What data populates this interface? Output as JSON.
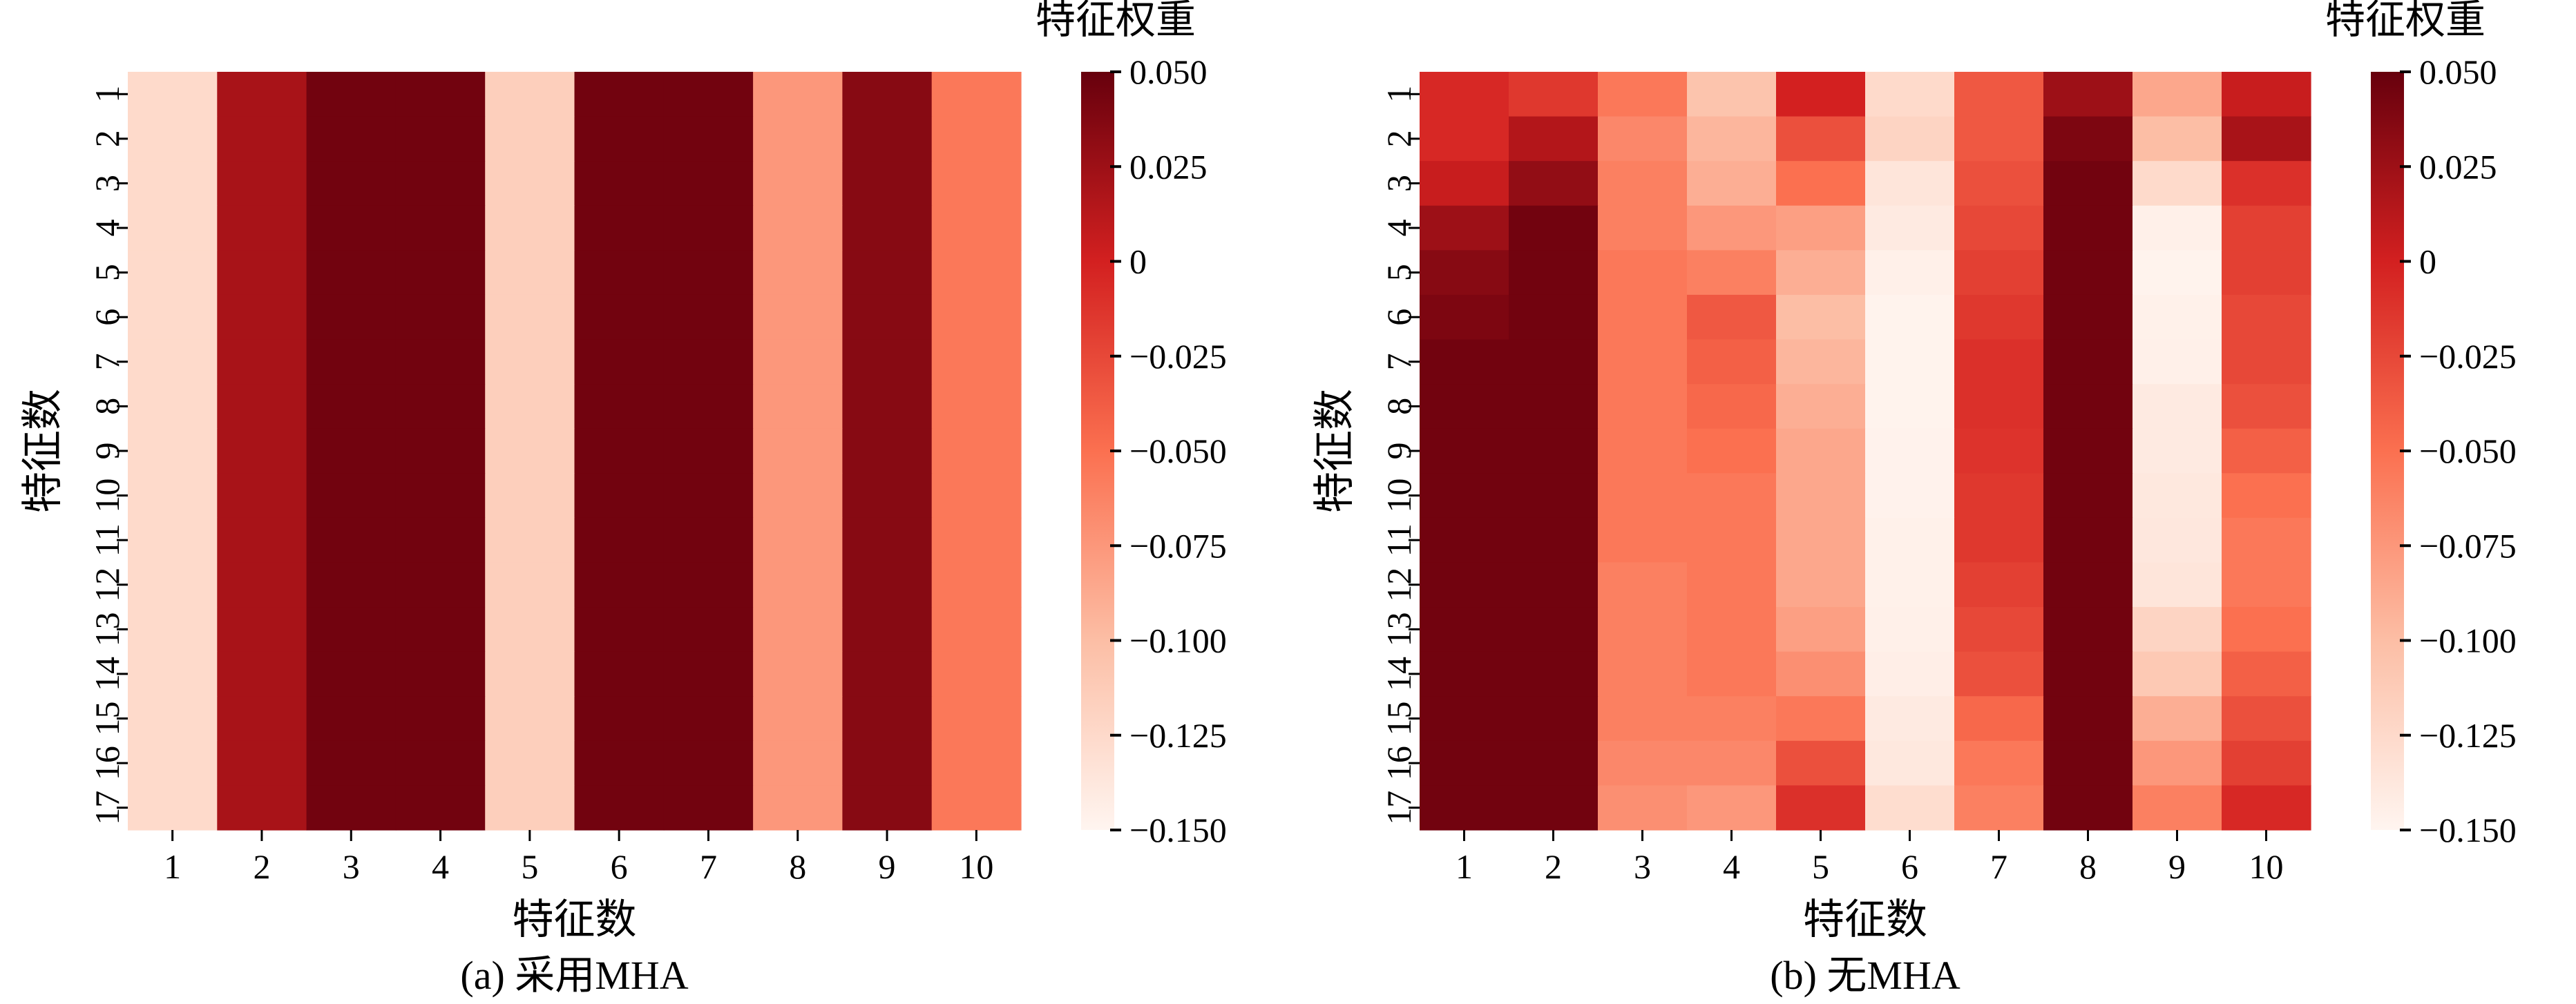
{
  "colors": {
    "colormap": [
      "#fff5f0",
      "#fcbea5",
      "#fb7050",
      "#d32020",
      "#67000d"
    ],
    "text": "#000000",
    "axis": "#000000"
  },
  "chart_data": [
    {
      "type": "heatmap",
      "panel": "a",
      "caption": "(a) 采用MHA",
      "xlabel": "特征数",
      "ylabel": "特征数",
      "x_ticks": [
        "1",
        "2",
        "3",
        "4",
        "5",
        "6",
        "7",
        "8",
        "9",
        "10"
      ],
      "y_ticks": [
        "1",
        "2",
        "3",
        "4",
        "5",
        "6",
        "7",
        "8",
        "9",
        "10",
        "11",
        "12",
        "13",
        "14",
        "15",
        "16",
        "17"
      ],
      "colorbar": {
        "title": "特征权重",
        "range": [
          -0.15,
          0.05
        ],
        "tick_values": [
          0.05,
          0.025,
          0,
          -0.025,
          -0.05,
          -0.075,
          -0.1,
          -0.125,
          -0.15
        ],
        "tick_labels": [
          "0.050",
          "0.025",
          "0",
          "−0.025",
          "−0.050",
          "−0.075",
          "−0.100",
          "−0.125",
          "−0.150"
        ]
      },
      "column_values": [
        -0.125,
        0.02,
        0.045,
        0.045,
        -0.115,
        0.045,
        0.045,
        -0.075,
        0.035,
        -0.055
      ],
      "values": [
        [
          -0.125,
          0.02,
          0.045,
          0.045,
          -0.115,
          0.045,
          0.045,
          -0.075,
          0.035,
          -0.055
        ],
        [
          -0.125,
          0.02,
          0.045,
          0.045,
          -0.115,
          0.045,
          0.045,
          -0.075,
          0.035,
          -0.055
        ],
        [
          -0.125,
          0.02,
          0.045,
          0.045,
          -0.115,
          0.045,
          0.045,
          -0.075,
          0.035,
          -0.055
        ],
        [
          -0.125,
          0.02,
          0.045,
          0.045,
          -0.115,
          0.045,
          0.045,
          -0.075,
          0.035,
          -0.055
        ],
        [
          -0.125,
          0.02,
          0.045,
          0.045,
          -0.115,
          0.045,
          0.045,
          -0.075,
          0.035,
          -0.055
        ],
        [
          -0.125,
          0.02,
          0.045,
          0.045,
          -0.115,
          0.045,
          0.045,
          -0.075,
          0.035,
          -0.055
        ],
        [
          -0.125,
          0.02,
          0.045,
          0.045,
          -0.115,
          0.045,
          0.045,
          -0.075,
          0.035,
          -0.055
        ],
        [
          -0.125,
          0.02,
          0.045,
          0.045,
          -0.115,
          0.045,
          0.045,
          -0.075,
          0.035,
          -0.055
        ],
        [
          -0.125,
          0.02,
          0.045,
          0.045,
          -0.115,
          0.045,
          0.045,
          -0.075,
          0.035,
          -0.055
        ],
        [
          -0.125,
          0.02,
          0.045,
          0.045,
          -0.115,
          0.045,
          0.045,
          -0.075,
          0.035,
          -0.055
        ],
        [
          -0.125,
          0.02,
          0.045,
          0.045,
          -0.115,
          0.045,
          0.045,
          -0.075,
          0.035,
          -0.055
        ],
        [
          -0.125,
          0.02,
          0.045,
          0.045,
          -0.115,
          0.045,
          0.045,
          -0.075,
          0.035,
          -0.055
        ],
        [
          -0.125,
          0.02,
          0.045,
          0.045,
          -0.115,
          0.045,
          0.045,
          -0.075,
          0.035,
          -0.055
        ],
        [
          -0.125,
          0.02,
          0.045,
          0.045,
          -0.115,
          0.045,
          0.045,
          -0.075,
          0.035,
          -0.055
        ],
        [
          -0.125,
          0.02,
          0.045,
          0.045,
          -0.115,
          0.045,
          0.045,
          -0.075,
          0.035,
          -0.055
        ],
        [
          -0.125,
          0.02,
          0.045,
          0.045,
          -0.115,
          0.045,
          0.045,
          -0.075,
          0.035,
          -0.055
        ],
        [
          -0.125,
          0.02,
          0.045,
          0.045,
          -0.115,
          0.045,
          0.045,
          -0.075,
          0.035,
          -0.055
        ]
      ]
    },
    {
      "type": "heatmap",
      "panel": "b",
      "caption": "(b) 无MHA",
      "xlabel": "特征数",
      "ylabel": "特征数",
      "x_ticks": [
        "1",
        "2",
        "3",
        "4",
        "5",
        "6",
        "7",
        "8",
        "9",
        "10"
      ],
      "y_ticks": [
        "1",
        "2",
        "3",
        "4",
        "5",
        "6",
        "7",
        "8",
        "9",
        "10",
        "11",
        "12",
        "13",
        "14",
        "15",
        "16",
        "17"
      ],
      "colorbar": {
        "title": "特征权重",
        "range": [
          -0.15,
          0.05
        ],
        "tick_values": [
          0.05,
          0.025,
          0,
          -0.025,
          -0.05,
          -0.075,
          -0.1,
          -0.125,
          -0.15
        ],
        "tick_labels": [
          "0.050",
          "0.025",
          "0",
          "−0.025",
          "−0.050",
          "−0.075",
          "−0.100",
          "−0.125",
          "−0.150"
        ]
      },
      "values": [
        [
          -0.005,
          -0.015,
          -0.055,
          -0.105,
          0.0,
          -0.125,
          -0.035,
          0.025,
          -0.085,
          0.005
        ],
        [
          -0.005,
          0.015,
          -0.065,
          -0.095,
          -0.03,
          -0.12,
          -0.035,
          0.04,
          -0.1,
          0.02
        ],
        [
          0.005,
          0.03,
          -0.06,
          -0.09,
          -0.05,
          -0.135,
          -0.03,
          0.045,
          -0.125,
          -0.01
        ],
        [
          0.025,
          0.045,
          -0.06,
          -0.075,
          -0.08,
          -0.14,
          -0.025,
          0.045,
          -0.145,
          -0.02
        ],
        [
          0.035,
          0.045,
          -0.055,
          -0.06,
          -0.09,
          -0.145,
          -0.02,
          0.045,
          -0.148,
          -0.02
        ],
        [
          0.04,
          0.045,
          -0.055,
          -0.035,
          -0.1,
          -0.148,
          -0.015,
          0.045,
          -0.146,
          -0.025
        ],
        [
          0.045,
          0.045,
          -0.055,
          -0.04,
          -0.095,
          -0.148,
          -0.01,
          0.045,
          -0.145,
          -0.025
        ],
        [
          0.045,
          0.045,
          -0.055,
          -0.045,
          -0.09,
          -0.148,
          -0.01,
          0.045,
          -0.14,
          -0.03
        ],
        [
          0.045,
          0.045,
          -0.055,
          -0.05,
          -0.085,
          -0.147,
          -0.012,
          0.045,
          -0.14,
          -0.04
        ],
        [
          0.045,
          0.045,
          -0.055,
          -0.055,
          -0.085,
          -0.147,
          -0.015,
          0.045,
          -0.138,
          -0.05
        ],
        [
          0.045,
          0.045,
          -0.055,
          -0.055,
          -0.085,
          -0.146,
          -0.015,
          0.045,
          -0.137,
          -0.055
        ],
        [
          0.045,
          0.045,
          -0.06,
          -0.055,
          -0.085,
          -0.146,
          -0.02,
          0.045,
          -0.135,
          -0.055
        ],
        [
          0.045,
          0.045,
          -0.06,
          -0.055,
          -0.08,
          -0.145,
          -0.025,
          0.045,
          -0.12,
          -0.05
        ],
        [
          0.045,
          0.045,
          -0.06,
          -0.055,
          -0.07,
          -0.144,
          -0.03,
          0.045,
          -0.11,
          -0.04
        ],
        [
          0.045,
          0.045,
          -0.06,
          -0.06,
          -0.055,
          -0.14,
          -0.045,
          0.045,
          -0.09,
          -0.03
        ],
        [
          0.045,
          0.045,
          -0.065,
          -0.065,
          -0.03,
          -0.138,
          -0.055,
          0.045,
          -0.075,
          -0.02
        ],
        [
          0.045,
          0.045,
          -0.07,
          -0.075,
          -0.01,
          -0.128,
          -0.06,
          0.045,
          -0.06,
          -0.005
        ]
      ]
    }
  ]
}
